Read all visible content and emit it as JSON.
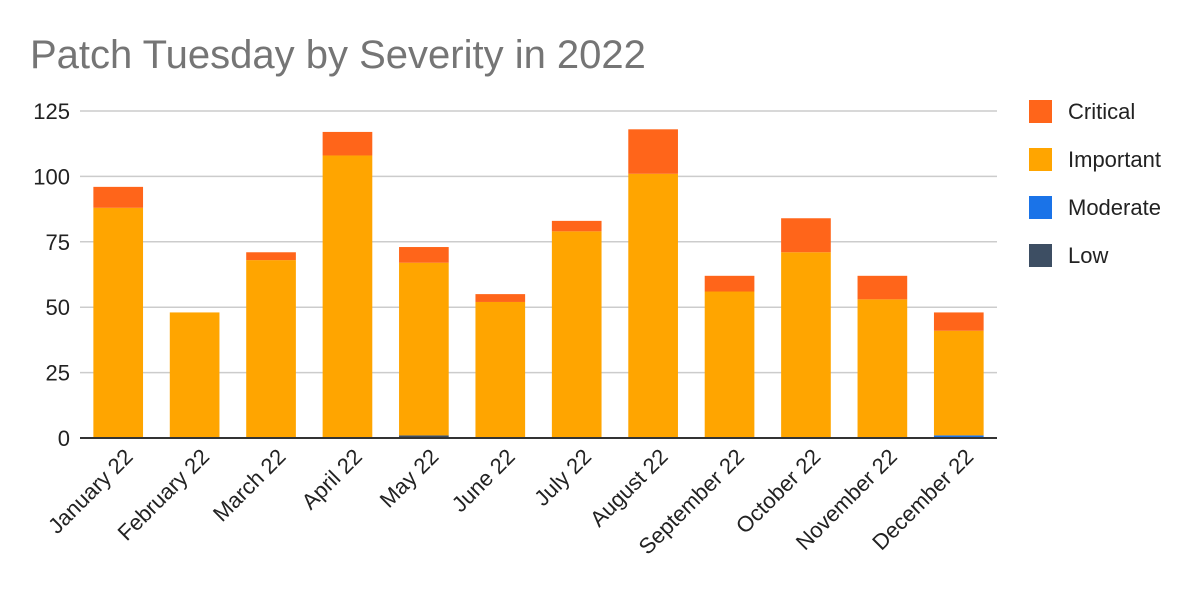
{
  "chart_data": {
    "type": "bar",
    "stacked": true,
    "title": "Patch Tuesday by Severity in 2022",
    "xlabel": "",
    "ylabel": "",
    "ylim": [
      0,
      125
    ],
    "yticks": [
      0,
      25,
      50,
      75,
      100,
      125
    ],
    "grid": true,
    "legend_position": "right",
    "categories": [
      "January 22",
      "February 22",
      "March 22",
      "April 22",
      "May 22",
      "June 22",
      "July 22",
      "August 22",
      "September 22",
      "October 22",
      "November 22",
      "December 22"
    ],
    "series": [
      {
        "name": "Low",
        "color": "#3d4e63",
        "values": [
          0,
          0,
          0,
          0,
          1,
          0,
          0,
          0,
          0,
          0,
          0,
          0
        ]
      },
      {
        "name": "Moderate",
        "color": "#1a73e8",
        "values": [
          0,
          0,
          0,
          0,
          0,
          0,
          0,
          0,
          0,
          0,
          0,
          1
        ]
      },
      {
        "name": "Important",
        "color": "#ffa500",
        "values": [
          88,
          48,
          68,
          108,
          66,
          52,
          79,
          101,
          56,
          71,
          53,
          40
        ]
      },
      {
        "name": "Critical",
        "color": "#ff651a",
        "values": [
          8,
          0,
          3,
          9,
          6,
          3,
          4,
          17,
          6,
          13,
          9,
          7
        ]
      }
    ],
    "legend_order": [
      "Critical",
      "Important",
      "Moderate",
      "Low"
    ]
  }
}
